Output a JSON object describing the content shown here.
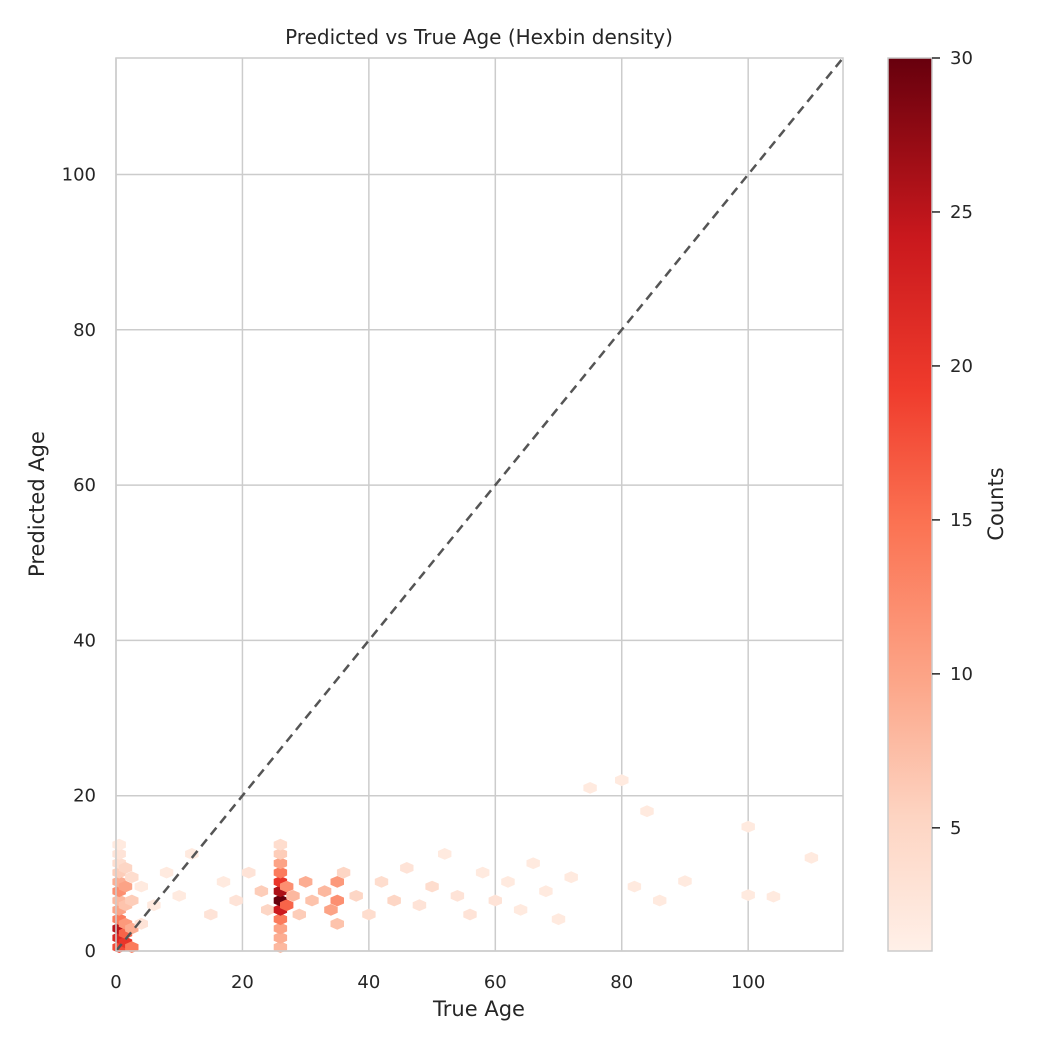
{
  "chart_data": {
    "type": "hexbin",
    "title": "Predicted vs True Age (Hexbin density)",
    "xlabel": "True Age",
    "ylabel": "Predicted Age",
    "xlim": [
      0,
      115
    ],
    "ylim": [
      0,
      115
    ],
    "xticks": [
      "0",
      "20",
      "40",
      "60",
      "80",
      "100"
    ],
    "yticks": [
      "0",
      "20",
      "40",
      "60",
      "80",
      "100"
    ],
    "grid": true,
    "reference_line": {
      "from": [
        0,
        0
      ],
      "to": [
        115,
        115
      ],
      "style": "dashed",
      "color": "#555555"
    },
    "colorbar": {
      "label": "Counts",
      "min": 1,
      "max": 30,
      "ticks": [
        "5",
        "10",
        "15",
        "20",
        "25",
        "30"
      ],
      "colormap": "Reds"
    },
    "hex_bins": [
      {
        "x": 0.5,
        "y": 0.5,
        "count": 18
      },
      {
        "x": 0.5,
        "y": 1.7,
        "count": 22
      },
      {
        "x": 0.5,
        "y": 2.9,
        "count": 25
      },
      {
        "x": 0.5,
        "y": 4.1,
        "count": 14
      },
      {
        "x": 0.5,
        "y": 5.3,
        "count": 10
      },
      {
        "x": 0.5,
        "y": 6.5,
        "count": 8
      },
      {
        "x": 0.5,
        "y": 7.7,
        "count": 12
      },
      {
        "x": 0.5,
        "y": 8.9,
        "count": 9
      },
      {
        "x": 0.5,
        "y": 10.1,
        "count": 6
      },
      {
        "x": 0.5,
        "y": 11.3,
        "count": 4
      },
      {
        "x": 0.5,
        "y": 12.5,
        "count": 3
      },
      {
        "x": 0.5,
        "y": 13.7,
        "count": 2
      },
      {
        "x": 1.5,
        "y": 1.1,
        "count": 20
      },
      {
        "x": 1.5,
        "y": 2.3,
        "count": 16
      },
      {
        "x": 1.5,
        "y": 3.5,
        "count": 11
      },
      {
        "x": 1.5,
        "y": 5.9,
        "count": 7
      },
      {
        "x": 1.5,
        "y": 8.3,
        "count": 10
      },
      {
        "x": 1.5,
        "y": 10.7,
        "count": 5
      },
      {
        "x": 2.5,
        "y": 0.5,
        "count": 14
      },
      {
        "x": 2.5,
        "y": 2.9,
        "count": 9
      },
      {
        "x": 2.5,
        "y": 6.5,
        "count": 6
      },
      {
        "x": 2.5,
        "y": 9.5,
        "count": 4
      },
      {
        "x": 4,
        "y": 3.5,
        "count": 3
      },
      {
        "x": 4,
        "y": 8.3,
        "count": 2
      },
      {
        "x": 6,
        "y": 5.9,
        "count": 2
      },
      {
        "x": 8,
        "y": 10.1,
        "count": 2
      },
      {
        "x": 10,
        "y": 7.1,
        "count": 2
      },
      {
        "x": 12,
        "y": 12.5,
        "count": 2
      },
      {
        "x": 15,
        "y": 4.7,
        "count": 3
      },
      {
        "x": 17,
        "y": 8.9,
        "count": 2
      },
      {
        "x": 19,
        "y": 6.5,
        "count": 3
      },
      {
        "x": 21,
        "y": 10.1,
        "count": 3
      },
      {
        "x": 23,
        "y": 7.7,
        "count": 6
      },
      {
        "x": 24,
        "y": 5.3,
        "count": 5
      },
      {
        "x": 26,
        "y": 0.5,
        "count": 8
      },
      {
        "x": 26,
        "y": 1.7,
        "count": 9
      },
      {
        "x": 26,
        "y": 2.9,
        "count": 10
      },
      {
        "x": 26,
        "y": 4.1,
        "count": 14
      },
      {
        "x": 26,
        "y": 5.3,
        "count": 24
      },
      {
        "x": 26,
        "y": 6.5,
        "count": 30
      },
      {
        "x": 26,
        "y": 7.7,
        "count": 26
      },
      {
        "x": 26,
        "y": 8.9,
        "count": 20
      },
      {
        "x": 26,
        "y": 10.1,
        "count": 14
      },
      {
        "x": 26,
        "y": 11.3,
        "count": 10
      },
      {
        "x": 26,
        "y": 12.5,
        "count": 6
      },
      {
        "x": 26,
        "y": 13.7,
        "count": 4
      },
      {
        "x": 27,
        "y": 5.9,
        "count": 16
      },
      {
        "x": 27,
        "y": 8.3,
        "count": 12
      },
      {
        "x": 28,
        "y": 7.1,
        "count": 8
      },
      {
        "x": 29,
        "y": 4.7,
        "count": 6
      },
      {
        "x": 30,
        "y": 8.9,
        "count": 9
      },
      {
        "x": 31,
        "y": 6.5,
        "count": 7
      },
      {
        "x": 33,
        "y": 7.7,
        "count": 8
      },
      {
        "x": 34,
        "y": 5.3,
        "count": 10
      },
      {
        "x": 35,
        "y": 6.5,
        "count": 12
      },
      {
        "x": 35,
        "y": 8.9,
        "count": 11
      },
      {
        "x": 35,
        "y": 3.5,
        "count": 7
      },
      {
        "x": 36,
        "y": 10.1,
        "count": 5
      },
      {
        "x": 38,
        "y": 7.1,
        "count": 5
      },
      {
        "x": 40,
        "y": 4.7,
        "count": 4
      },
      {
        "x": 42,
        "y": 8.9,
        "count": 4
      },
      {
        "x": 44,
        "y": 6.5,
        "count": 5
      },
      {
        "x": 46,
        "y": 10.7,
        "count": 3
      },
      {
        "x": 48,
        "y": 5.9,
        "count": 3
      },
      {
        "x": 50,
        "y": 8.3,
        "count": 4
      },
      {
        "x": 52,
        "y": 12.5,
        "count": 2
      },
      {
        "x": 54,
        "y": 7.1,
        "count": 3
      },
      {
        "x": 56,
        "y": 4.7,
        "count": 3
      },
      {
        "x": 58,
        "y": 10.1,
        "count": 2
      },
      {
        "x": 60,
        "y": 6.5,
        "count": 3
      },
      {
        "x": 62,
        "y": 8.9,
        "count": 2
      },
      {
        "x": 64,
        "y": 5.3,
        "count": 2
      },
      {
        "x": 66,
        "y": 11.3,
        "count": 2
      },
      {
        "x": 68,
        "y": 7.7,
        "count": 2
      },
      {
        "x": 70,
        "y": 4.1,
        "count": 2
      },
      {
        "x": 72,
        "y": 9.5,
        "count": 2
      },
      {
        "x": 75,
        "y": 21,
        "count": 2
      },
      {
        "x": 80,
        "y": 22,
        "count": 2
      },
      {
        "x": 82,
        "y": 8.3,
        "count": 2
      },
      {
        "x": 84,
        "y": 18,
        "count": 2
      },
      {
        "x": 86,
        "y": 6.5,
        "count": 2
      },
      {
        "x": 90,
        "y": 9,
        "count": 2
      },
      {
        "x": 100,
        "y": 16,
        "count": 2
      },
      {
        "x": 100,
        "y": 7.2,
        "count": 2
      },
      {
        "x": 104,
        "y": 7,
        "count": 2
      },
      {
        "x": 110,
        "y": 12,
        "count": 2
      }
    ]
  }
}
